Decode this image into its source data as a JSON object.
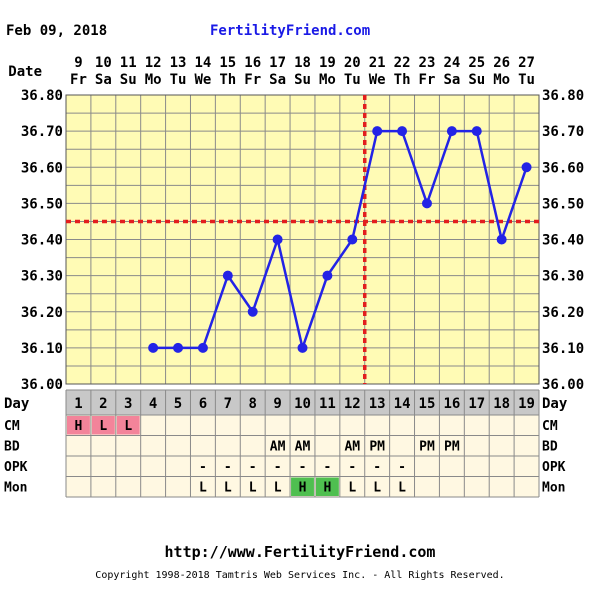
{
  "header": {
    "date": "Feb 09, 2018",
    "site": "FertilityFriend.com"
  },
  "footer": {
    "url": "http://www.FertilityFriend.com",
    "copyright": "Copyright 1998-2018 Tamtris Web Services Inc. - All Rights Reserved."
  },
  "row_labels": {
    "date": "Date",
    "day": "Day",
    "cm": "CM",
    "bd": "BD",
    "opk": "OPK",
    "mon": "Mon"
  },
  "colors": {
    "background": "#ffffff",
    "chart_bg": "#fffbb5",
    "grid": "#8a8a8a",
    "series": "#2323e6",
    "coverline": "#e31e1e",
    "ovulation": "#e31e1e",
    "day_row_bg": "#c8c8c8",
    "table_bg": "#fff8e2",
    "cm_bg": "#f3849a",
    "mon_high_bg": "#4fbf50",
    "site_text": "#1a1ae6"
  },
  "chart_data": {
    "type": "line",
    "title": "",
    "xlabel": "",
    "ylabel": "",
    "ylim": [
      36.0,
      36.8
    ],
    "yticks": [
      "36.00",
      "36.10",
      "36.20",
      "36.30",
      "36.40",
      "36.50",
      "36.60",
      "36.70",
      "36.80"
    ],
    "grid": true,
    "dates": [
      "9",
      "10",
      "11",
      "12",
      "13",
      "14",
      "15",
      "16",
      "17",
      "18",
      "19",
      "20",
      "21",
      "22",
      "23",
      "24",
      "25",
      "26",
      "27"
    ],
    "weekdays": [
      "Fr",
      "Sa",
      "Su",
      "Mo",
      "Tu",
      "We",
      "Th",
      "Fr",
      "Sa",
      "Su",
      "Mo",
      "Tu",
      "We",
      "Th",
      "Fr",
      "Sa",
      "Su",
      "Mo",
      "Tu"
    ],
    "cycle_days": [
      "1",
      "2",
      "3",
      "4",
      "5",
      "6",
      "7",
      "8",
      "9",
      "10",
      "11",
      "12",
      "13",
      "14",
      "15",
      "16",
      "17",
      "18",
      "19"
    ],
    "series": [
      {
        "values": [
          null,
          null,
          null,
          36.1,
          36.1,
          36.1,
          36.3,
          36.2,
          36.4,
          36.1,
          36.3,
          36.4,
          36.7,
          36.7,
          36.5,
          36.7,
          36.7,
          36.4,
          36.6
        ]
      }
    ],
    "coverline": 36.45,
    "ovulation_day": 12,
    "cm": [
      "H",
      "L",
      "L",
      "",
      "",
      "",
      "",
      "",
      "",
      "",
      "",
      "",
      "",
      "",
      "",
      "",
      "",
      "",
      ""
    ],
    "bd": [
      "",
      "",
      "",
      "",
      "",
      "",
      "",
      "",
      "AM",
      "AM",
      "",
      "AM",
      "PM",
      "",
      "PM",
      "PM",
      "",
      "",
      ""
    ],
    "opk": [
      "",
      "",
      "",
      "",
      "",
      "-",
      "-",
      "-",
      "-",
      "-",
      "-",
      "-",
      "-",
      "-",
      "",
      "",
      "",
      "",
      ""
    ],
    "mon": [
      "",
      "",
      "",
      "",
      "",
      "L",
      "L",
      "L",
      "L",
      "H",
      "H",
      "L",
      "L",
      "L",
      "",
      "",
      "",
      "",
      ""
    ]
  }
}
